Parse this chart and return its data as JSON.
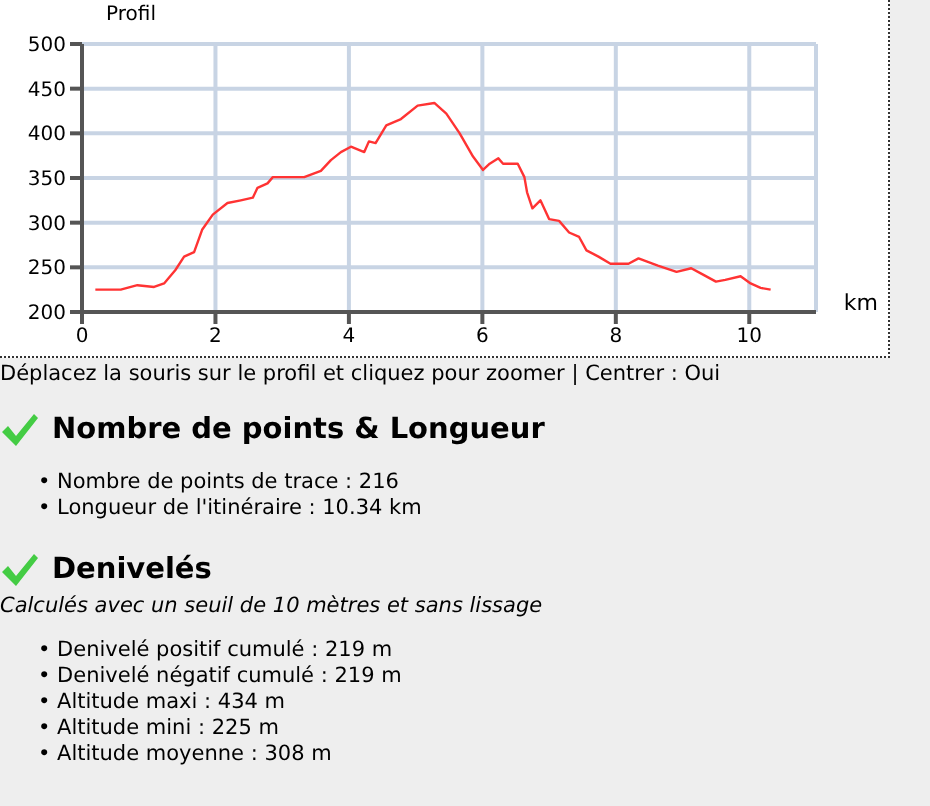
{
  "chart_data": {
    "type": "line",
    "xlabel": "km",
    "ylabel": "Profil",
    "x": [
      0.2,
      0.58,
      0.83,
      1.08,
      1.23,
      1.4,
      1.53,
      1.68,
      1.8,
      1.96,
      2.18,
      2.38,
      2.56,
      2.63,
      2.78,
      2.86,
      3.33,
      3.58,
      3.73,
      3.88,
      4.03,
      4.23,
      4.3,
      4.4,
      4.56,
      4.78,
      5.03,
      5.28,
      5.46,
      5.66,
      5.86,
      6.01,
      6.11,
      6.24,
      6.31,
      6.53,
      6.63,
      6.67,
      6.75,
      6.87,
      7.0,
      7.15,
      7.3,
      7.45,
      7.56,
      7.74,
      7.92,
      8.04,
      8.19,
      8.34,
      8.63,
      8.91,
      9.13,
      9.28,
      9.5,
      9.64,
      9.87,
      10.02,
      10.17,
      10.32
    ],
    "series": [
      {
        "color": "#ff3333",
        "values": [
          225,
          225,
          230,
          228,
          232,
          247,
          262,
          267,
          292,
          309,
          322,
          325,
          328,
          339,
          344,
          351,
          351,
          358,
          370,
          379,
          385,
          379,
          391,
          389,
          409,
          416,
          431,
          434,
          422,
          400,
          374,
          359,
          366,
          372,
          366,
          366,
          351,
          334,
          316,
          325,
          304,
          302,
          289,
          284,
          269,
          262,
          254,
          254,
          254,
          260,
          252,
          245,
          249,
          243,
          234,
          236,
          240,
          232,
          227,
          225
        ]
      }
    ],
    "xlim": [
      0,
      11
    ],
    "xticks": [
      0,
      2,
      4,
      6,
      8,
      10
    ],
    "ylim": [
      200,
      500
    ],
    "yticks": [
      200,
      250,
      300,
      350,
      400,
      450,
      500
    ],
    "grid": true,
    "marker": "none",
    "line_style": "solid",
    "legend": false,
    "annotations": [
      "Déplacez la souris sur le profil et cliquez pour zoomer | Centrer : Oui",
      "Nombre de points & Longueur",
      "• Nombre de points de trace : 216",
      "• Longueur de l'itinéraire : 10.34 km",
      "Denivelés",
      "Calculés avec un seuil de 10 mètres et sans lissage",
      "• Denivelé positif cumulé : 219 m",
      "• Denivelé négatif cumulé : 219 m",
      "• Altitude maxi : 434 m",
      "• Altitude mini : 225 m",
      "• Altitude moyenne : 308 m"
    ]
  }
}
